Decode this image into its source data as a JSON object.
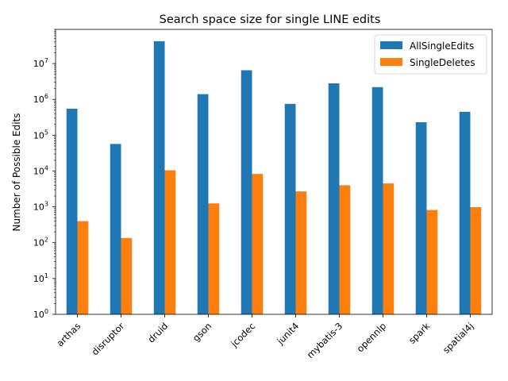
{
  "chart_data": {
    "type": "bar",
    "title": "Search space size for single LINE edits",
    "xlabel": "",
    "ylabel": "Number of Possible Edits",
    "yscale": "log",
    "ylim": [
      1,
      90000000
    ],
    "yticks": [
      {
        "value": 1,
        "base": "10",
        "exp": "0"
      },
      {
        "value": 10,
        "base": "10",
        "exp": "1"
      },
      {
        "value": 100,
        "base": "10",
        "exp": "2"
      },
      {
        "value": 1000,
        "base": "10",
        "exp": "3"
      },
      {
        "value": 10000,
        "base": "10",
        "exp": "4"
      },
      {
        "value": 100000,
        "base": "10",
        "exp": "5"
      },
      {
        "value": 1000000,
        "base": "10",
        "exp": "6"
      },
      {
        "value": 10000000,
        "base": "10",
        "exp": "7"
      }
    ],
    "categories": [
      "arthas",
      "disruptor",
      "druid",
      "gson",
      "jcodec",
      "junit4",
      "mybatis-3",
      "opennlp",
      "spark",
      "spatial4j"
    ],
    "series": [
      {
        "name": "AllSingleEdits",
        "color": "#1f77b4",
        "values": [
          550000,
          57000,
          42000000,
          1400000,
          6500000,
          750000,
          2800000,
          2200000,
          230000,
          450000
        ]
      },
      {
        "name": "SingleDeletes",
        "color": "#ff7f0e",
        "values": [
          400,
          135,
          10500,
          1250,
          8300,
          2700,
          4000,
          4500,
          820,
          980
        ]
      }
    ],
    "legend": "top-right",
    "grid": false
  }
}
